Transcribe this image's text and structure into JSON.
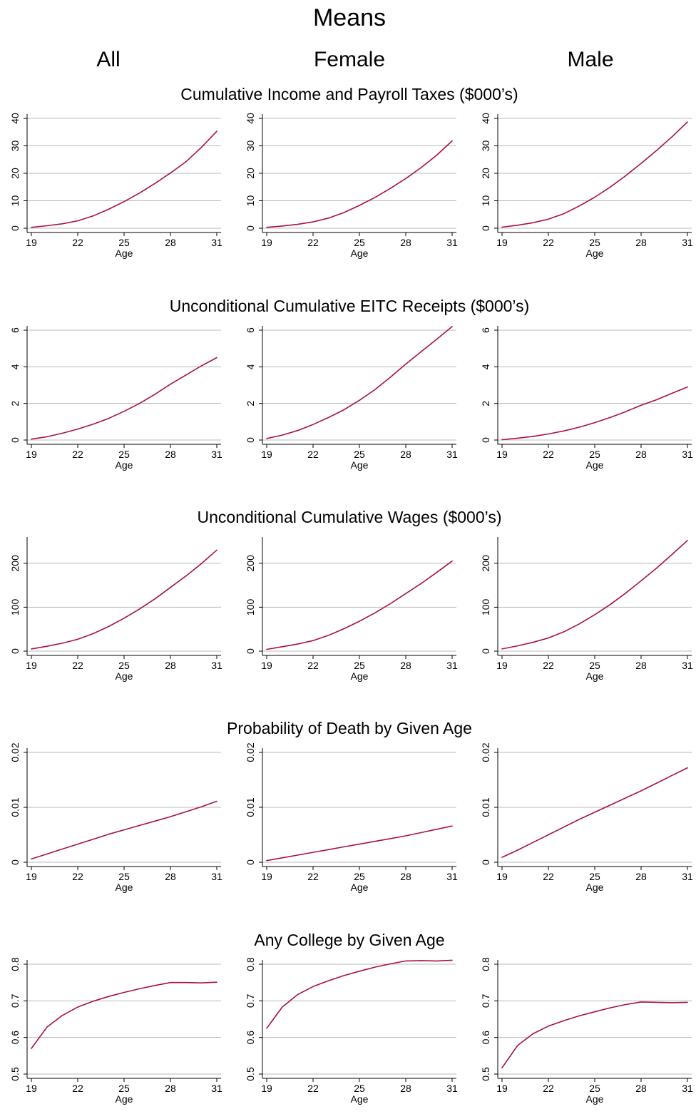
{
  "figure": {
    "title": "Means",
    "columns": [
      "All",
      "Female",
      "Male"
    ],
    "xlabel": "Age",
    "line_color": "#a8123e",
    "grid_color": "#b8b8b8"
  },
  "chart_data": [
    {
      "type": "line",
      "title": "Cumulative Income and Payroll Taxes ($000’s)",
      "xlabel": "Age",
      "ylabel": "",
      "xlim": [
        19,
        31
      ],
      "xticks": [
        19,
        22,
        25,
        28,
        31
      ],
      "ylim": [
        0,
        40
      ],
      "yticks": [
        0,
        10,
        20,
        30,
        40
      ],
      "ytick_labels": [
        "0",
        "10",
        "20",
        "30",
        "40"
      ],
      "grid": true,
      "x": [
        19,
        20,
        21,
        22,
        23,
        24,
        25,
        26,
        27,
        28,
        29,
        30,
        31
      ],
      "series": [
        {
          "panel": "All",
          "values": [
            0.3,
            0.9,
            1.6,
            2.7,
            4.5,
            6.9,
            9.7,
            12.8,
            16.3,
            20.1,
            24.2,
            29.4,
            35.3
          ]
        },
        {
          "panel": "Female",
          "values": [
            0.3,
            0.8,
            1.4,
            2.3,
            3.7,
            5.7,
            8.3,
            11.2,
            14.5,
            18.1,
            22.1,
            26.6,
            31.8
          ]
        },
        {
          "panel": "Male",
          "values": [
            0.4,
            1.1,
            2.0,
            3.3,
            5.3,
            8.1,
            11.3,
            15.0,
            19.1,
            23.6,
            28.3,
            33.3,
            38.7
          ]
        }
      ]
    },
    {
      "type": "line",
      "title": "Unconditional Cumulative EITC Receipts ($000’s)",
      "xlabel": "Age",
      "ylabel": "",
      "xlim": [
        19,
        31
      ],
      "xticks": [
        19,
        22,
        25,
        28,
        31
      ],
      "ylim": [
        0,
        6
      ],
      "yticks": [
        0,
        2,
        4,
        6
      ],
      "ytick_labels": [
        "0",
        "2",
        "4",
        "6"
      ],
      "grid": true,
      "x": [
        19,
        20,
        21,
        22,
        23,
        24,
        25,
        26,
        27,
        28,
        29,
        30,
        31
      ],
      "series": [
        {
          "panel": "All",
          "values": [
            0.05,
            0.18,
            0.37,
            0.6,
            0.87,
            1.18,
            1.57,
            2.0,
            2.5,
            3.05,
            3.55,
            4.05,
            4.5
          ]
        },
        {
          "panel": "Female",
          "values": [
            0.08,
            0.27,
            0.52,
            0.85,
            1.23,
            1.65,
            2.17,
            2.75,
            3.43,
            4.15,
            4.83,
            5.5,
            6.2
          ]
        },
        {
          "panel": "Male",
          "values": [
            0.02,
            0.1,
            0.2,
            0.33,
            0.5,
            0.7,
            0.95,
            1.23,
            1.55,
            1.9,
            2.2,
            2.55,
            2.9
          ]
        }
      ]
    },
    {
      "type": "line",
      "title": "Unconditional Cumulative Wages ($000’s)",
      "xlabel": "Age",
      "ylabel": "",
      "xlim": [
        19,
        31
      ],
      "xticks": [
        19,
        22,
        25,
        28,
        31
      ],
      "ylim": [
        0,
        250
      ],
      "yticks": [
        0,
        100,
        200
      ],
      "ytick_labels": [
        "0",
        "100",
        "200"
      ],
      "grid": true,
      "x": [
        19,
        20,
        21,
        22,
        23,
        24,
        25,
        26,
        27,
        28,
        29,
        30,
        31
      ],
      "series": [
        {
          "panel": "All",
          "values": [
            5,
            11,
            18,
            27,
            40,
            56,
            75,
            96,
            119,
            145,
            171,
            199,
            230
          ]
        },
        {
          "panel": "Female",
          "values": [
            4,
            10,
            16,
            24,
            36,
            51,
            68,
            87,
            108,
            131,
            154,
            179,
            205
          ]
        },
        {
          "panel": "Male",
          "values": [
            5,
            12,
            20,
            30,
            44,
            62,
            83,
            106,
            132,
            160,
            189,
            220,
            252
          ]
        }
      ]
    },
    {
      "type": "line",
      "title": "Probability of Death by Given Age",
      "xlabel": "Age",
      "ylabel": "",
      "xlim": [
        19,
        31
      ],
      "xticks": [
        19,
        22,
        25,
        28,
        31
      ],
      "ylim": [
        0,
        0.02
      ],
      "yticks": [
        0,
        0.01,
        0.02
      ],
      "ytick_labels": [
        "0",
        "0.01",
        "0.02"
      ],
      "grid": true,
      "x": [
        19,
        20,
        21,
        22,
        23,
        24,
        25,
        26,
        27,
        28,
        29,
        30,
        31
      ],
      "series": [
        {
          "panel": "All",
          "values": [
            0.0006,
            0.0015,
            0.0024,
            0.0033,
            0.0042,
            0.0051,
            0.0059,
            0.0067,
            0.0075,
            0.0083,
            0.0092,
            0.0101,
            0.0111
          ]
        },
        {
          "panel": "Female",
          "values": [
            0.0003,
            0.0008,
            0.0013,
            0.0018,
            0.0023,
            0.0028,
            0.0033,
            0.0038,
            0.0043,
            0.0048,
            0.0054,
            0.006,
            0.0066
          ]
        },
        {
          "panel": "Male",
          "values": [
            0.0009,
            0.0022,
            0.0036,
            0.005,
            0.0064,
            0.0078,
            0.0091,
            0.0104,
            0.0117,
            0.013,
            0.0144,
            0.0158,
            0.0172
          ]
        }
      ]
    },
    {
      "type": "line",
      "title": "Any College by Given Age",
      "xlabel": "Age",
      "ylabel": "",
      "xlim": [
        19,
        31
      ],
      "xticks": [
        19,
        22,
        25,
        28,
        31
      ],
      "ylim": [
        0.5,
        0.8
      ],
      "yticks": [
        0.5,
        0.6,
        0.7,
        0.8
      ],
      "ytick_labels": [
        "0.5",
        "0.6",
        "0.7",
        "0.8"
      ],
      "grid": true,
      "x": [
        19,
        20,
        21,
        22,
        23,
        24,
        25,
        26,
        27,
        28,
        29,
        30,
        31
      ],
      "series": [
        {
          "panel": "All",
          "values": [
            0.57,
            0.628,
            0.66,
            0.683,
            0.699,
            0.712,
            0.723,
            0.733,
            0.742,
            0.75,
            0.75,
            0.749,
            0.751
          ]
        },
        {
          "panel": "Female",
          "values": [
            0.625,
            0.683,
            0.717,
            0.739,
            0.755,
            0.769,
            0.781,
            0.792,
            0.801,
            0.809,
            0.81,
            0.809,
            0.811
          ]
        },
        {
          "panel": "Male",
          "values": [
            0.517,
            0.578,
            0.61,
            0.631,
            0.646,
            0.659,
            0.67,
            0.681,
            0.69,
            0.697,
            0.696,
            0.695,
            0.696
          ]
        }
      ]
    }
  ]
}
